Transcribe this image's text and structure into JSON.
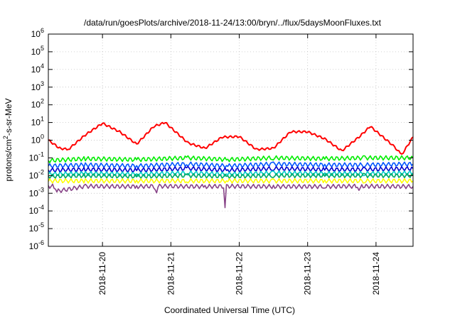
{
  "chart_data": {
    "type": "line",
    "title": "/data/run/goesPlots/archive/2018-11-24/13:00/bryn/../flux/5daysMoonFluxes.txt",
    "xlabel": "Coordinated Universal Time (UTC)",
    "ylabel_parts": [
      "protons/cm",
      "2",
      "-s-sr-MeV"
    ],
    "x_range": [
      "2018-11-19T05:00",
      "2018-11-24T13:00"
    ],
    "x_ticks": [
      "2018-11-20",
      "2018-11-21",
      "2018-11-22",
      "2018-11-23",
      "2018-11-24"
    ],
    "y_scale": "log",
    "y_range": [
      1e-06,
      1000000.0
    ],
    "y_ticks": [
      {
        "base": "10",
        "exp": "-6",
        "value": 1e-06
      },
      {
        "base": "10",
        "exp": "-5",
        "value": 1e-05
      },
      {
        "base": "10",
        "exp": "-4",
        "value": 0.0001
      },
      {
        "base": "10",
        "exp": "-3",
        "value": 0.001
      },
      {
        "base": "10",
        "exp": "-2",
        "value": 0.01
      },
      {
        "base": "10",
        "exp": "-1",
        "value": 0.1
      },
      {
        "base": "10",
        "exp": "0",
        "value": 1
      },
      {
        "base": "10",
        "exp": "1",
        "value": 10
      },
      {
        "base": "10",
        "exp": "2",
        "value": 100
      },
      {
        "base": "10",
        "exp": "3",
        "value": 1000
      },
      {
        "base": "10",
        "exp": "4",
        "value": 10000
      },
      {
        "base": "10",
        "exp": "5",
        "value": 100000
      },
      {
        "base": "10",
        "exp": "6",
        "value": 1000000
      }
    ],
    "grid": true,
    "legend": "none",
    "series": [
      {
        "color": "#ff0000",
        "x": [
          "2018-11-19T05:00",
          "2018-11-19T09:00",
          "2018-11-19T12:00",
          "2018-11-19T18:00",
          "2018-11-20T00:00",
          "2018-11-20T06:00",
          "2018-11-20T12:00",
          "2018-11-20T18:00",
          "2018-11-20T22:00",
          "2018-11-21T06:00",
          "2018-11-21T12:00",
          "2018-11-21T18:00",
          "2018-11-22T00:00",
          "2018-11-22T06:00",
          "2018-11-22T12:00",
          "2018-11-22T18:00",
          "2018-11-23T00:00",
          "2018-11-23T06:00",
          "2018-11-23T12:00",
          "2018-11-23T18:00",
          "2018-11-23T22:00",
          "2018-11-24T06:00",
          "2018-11-24T09:00",
          "2018-11-24T13:00"
        ],
        "values": [
          1.0,
          0.35,
          0.3,
          2.0,
          9.0,
          3.0,
          0.6,
          6.0,
          10.0,
          0.7,
          0.35,
          1.5,
          1.6,
          0.3,
          0.35,
          3.0,
          3.0,
          1.2,
          0.25,
          1.5,
          6.0,
          0.5,
          0.15,
          1.5
        ]
      },
      {
        "color": "#00ee00",
        "x": [
          "2018-11-19T05:00",
          "2018-11-19T18:00",
          "2018-11-20T12:00",
          "2018-11-21T06:00",
          "2018-11-21T20:00",
          "2018-11-22T12:00",
          "2018-11-23T06:00",
          "2018-11-23T20:00",
          "2018-11-24T13:00"
        ],
        "values": [
          0.07,
          0.09,
          0.08,
          0.1,
          0.08,
          0.1,
          0.09,
          0.1,
          0.1
        ]
      },
      {
        "color": "#0055ff",
        "x": [
          "2018-11-19T05:00",
          "2018-11-19T18:00",
          "2018-11-20T12:00",
          "2018-11-21T06:00",
          "2018-11-21T20:00",
          "2018-11-22T12:00",
          "2018-11-23T06:00",
          "2018-11-23T20:00",
          "2018-11-24T13:00"
        ],
        "values": [
          0.035,
          0.04,
          0.035,
          0.045,
          0.035,
          0.045,
          0.04,
          0.04,
          0.045
        ]
      },
      {
        "color": "#0000cc",
        "x": [
          "2018-11-19T05:00",
          "2018-11-19T18:00",
          "2018-11-20T12:00",
          "2018-11-21T06:00",
          "2018-11-21T20:00",
          "2018-11-22T12:00",
          "2018-11-23T06:00",
          "2018-11-23T20:00",
          "2018-11-24T13:00"
        ],
        "values": [
          0.02,
          0.022,
          0.02,
          0.025,
          0.02,
          0.025,
          0.022,
          0.022,
          0.025
        ]
      },
      {
        "color": "#00cccc",
        "x": [
          "2018-11-19T05:00",
          "2018-11-19T18:00",
          "2018-11-20T12:00",
          "2018-11-21T06:00",
          "2018-11-21T20:00",
          "2018-11-22T12:00",
          "2018-11-23T06:00",
          "2018-11-23T20:00",
          "2018-11-24T13:00"
        ],
        "values": [
          0.012,
          0.013,
          0.012,
          0.014,
          0.012,
          0.014,
          0.013,
          0.013,
          0.014
        ]
      },
      {
        "color": "#00aa66",
        "x": [
          "2018-11-19T05:00",
          "2018-11-19T18:00",
          "2018-11-20T12:00",
          "2018-11-21T06:00",
          "2018-11-21T20:00",
          "2018-11-22T12:00",
          "2018-11-23T06:00",
          "2018-11-23T20:00",
          "2018-11-24T13:00"
        ],
        "values": [
          0.009,
          0.01,
          0.009,
          0.01,
          0.009,
          0.01,
          0.01,
          0.01,
          0.01
        ]
      },
      {
        "color": "#ffff00",
        "x": [
          "2018-11-19T05:00",
          "2018-11-19T18:00",
          "2018-11-20T12:00",
          "2018-11-21T06:00",
          "2018-11-21T20:00",
          "2018-11-22T12:00",
          "2018-11-23T06:00",
          "2018-11-23T20:00",
          "2018-11-24T13:00"
        ],
        "values": [
          0.005,
          0.005,
          0.005,
          0.005,
          0.005,
          0.005,
          0.005,
          0.005,
          0.005
        ]
      },
      {
        "color": "#884488",
        "x": [
          "2018-11-19T05:00",
          "2018-11-19T07:00",
          "2018-11-19T08:00",
          "2018-11-19T18:00",
          "2018-11-20T12:00",
          "2018-11-20T18:00",
          "2018-11-20T19:00",
          "2018-11-20T20:00",
          "2018-11-21T12:00",
          "2018-11-21T18:30",
          "2018-11-21T19:00",
          "2018-11-21T19:30",
          "2018-11-22T12:00",
          "2018-11-23T06:00",
          "2018-11-23T17:00",
          "2018-11-23T18:00",
          "2018-11-23T19:00",
          "2018-11-24T13:00"
        ],
        "values": [
          0.0025,
          0.0025,
          0.0013,
          0.0025,
          0.0024,
          0.0025,
          0.0012,
          0.0025,
          0.0024,
          0.0025,
          0.00018,
          0.0025,
          0.0024,
          0.0024,
          0.0025,
          0.0012,
          0.0025,
          0.0024
        ]
      }
    ]
  }
}
